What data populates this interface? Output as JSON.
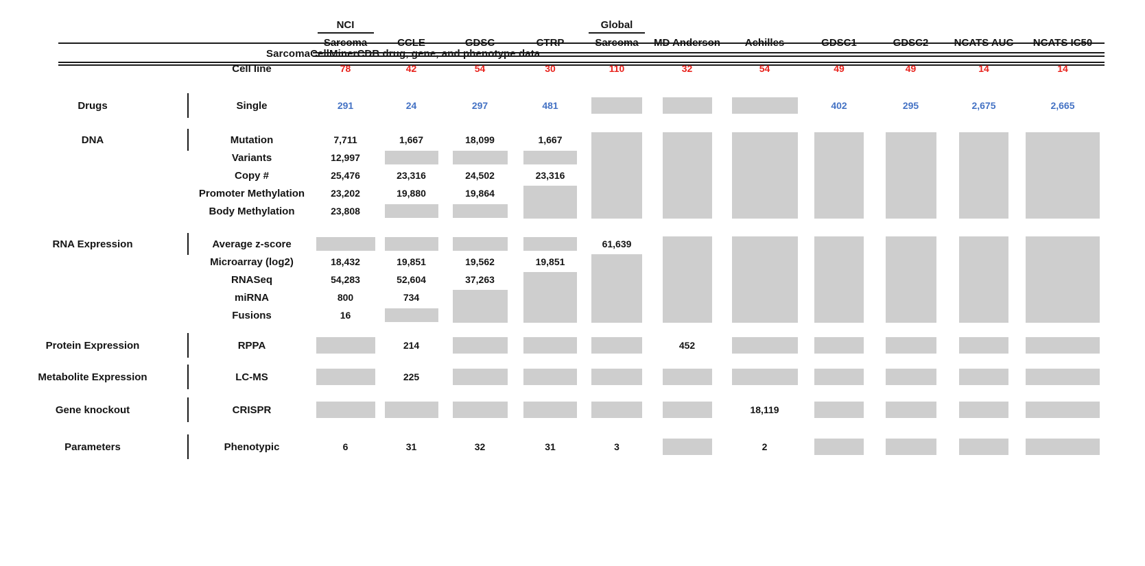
{
  "title": "SarcomaCellMinerCDB drug, gene, and phenotype data",
  "colors": {
    "cell_line_red": "#e8231d",
    "drug_blue": "#4472c4",
    "unavailable_gray": "#cecece",
    "rule_black": "#1a1a1a"
  },
  "columns": [
    {
      "top": "NCI",
      "label": "Sarcoma"
    },
    {
      "top": "",
      "label": "CCLE"
    },
    {
      "top": "",
      "label": "GDSC"
    },
    {
      "top": "",
      "label": "CTRP"
    },
    {
      "top": "Global",
      "label": "Sarcoma"
    },
    {
      "top": "",
      "label": "MD Anderson"
    },
    {
      "top": "",
      "label": "Achilles"
    },
    {
      "top": "",
      "label": "GDSC1"
    },
    {
      "top": "",
      "label": "GDSC2"
    },
    {
      "top": "",
      "label": "NCATS AUC"
    },
    {
      "top": "",
      "label": "NCATS IC50"
    }
  ],
  "sections": [
    {
      "category": "",
      "bar": false,
      "rows": [
        {
          "label": "Cell line",
          "style": "red",
          "cells": [
            "78",
            "42",
            "54",
            "30",
            "110",
            "32",
            "54",
            "49",
            "49",
            "14",
            "14"
          ]
        }
      ]
    },
    {
      "category": "Drugs",
      "bar": true,
      "rows": [
        {
          "label": "Single",
          "style": "blue",
          "cells": [
            "291",
            "24",
            "297",
            "481",
            {
              "g": 1
            },
            {
              "g": 1
            },
            {
              "g": 1
            },
            "402",
            "295",
            "2,675",
            "2,665"
          ]
        }
      ]
    },
    {
      "category": "DNA",
      "bar": true,
      "rows": [
        {
          "label": "Mutation",
          "cells": [
            "7,711",
            "1,667",
            "18,099",
            "1,667",
            {
              "g": 5
            },
            {
              "g": 5
            },
            {
              "g": 5
            },
            {
              "g": 5
            },
            {
              "g": 5
            },
            {
              "g": 5
            },
            {
              "g": 5
            }
          ]
        },
        {
          "label": "Variants",
          "cells": [
            "12,997",
            {
              "g": 1
            },
            {
              "g": 1
            },
            {
              "g": 1
            },
            null,
            null,
            null,
            null,
            null,
            null,
            null
          ]
        },
        {
          "label": "Copy #",
          "cells": [
            "25,476",
            "23,316",
            "24,502",
            "23,316",
            null,
            null,
            null,
            null,
            null,
            null,
            null
          ]
        },
        {
          "label": "Promoter Methylation",
          "cells": [
            "23,202",
            "19,880",
            "19,864",
            {
              "g": 2
            },
            null,
            null,
            null,
            null,
            null,
            null,
            null
          ]
        },
        {
          "label": "Body Methylation",
          "cells": [
            "23,808",
            {
              "g": 1
            },
            {
              "g": 1
            },
            null,
            null,
            null,
            null,
            null,
            null,
            null,
            null
          ]
        }
      ]
    },
    {
      "category": "RNA Expression",
      "bar": true,
      "rows": [
        {
          "label": "Average z-score",
          "cells": [
            {
              "g": 1
            },
            {
              "g": 1
            },
            {
              "g": 1
            },
            {
              "g": 1
            },
            "61,639",
            {
              "g": 5
            },
            {
              "g": 5
            },
            {
              "g": 5
            },
            {
              "g": 5
            },
            {
              "g": 5
            },
            {
              "g": 5
            }
          ]
        },
        {
          "label": "Microarray (log2)",
          "cells": [
            "18,432",
            "19,851",
            "19,562",
            "19,851",
            {
              "g": 4
            },
            null,
            null,
            null,
            null,
            null,
            null
          ]
        },
        {
          "label": "RNASeq",
          "cells": [
            "54,283",
            "52,604",
            "37,263",
            {
              "g": 3
            },
            null,
            null,
            null,
            null,
            null,
            null,
            null
          ]
        },
        {
          "label": "miRNA",
          "cells": [
            "800",
            "734",
            {
              "g": 2
            },
            null,
            null,
            null,
            null,
            null,
            null,
            null,
            null
          ]
        },
        {
          "label": "Fusions",
          "cells": [
            "16",
            {
              "g": 1
            },
            null,
            null,
            null,
            null,
            null,
            null,
            null,
            null,
            null
          ]
        }
      ]
    },
    {
      "category": "Protein Expression",
      "bar": true,
      "rows": [
        {
          "label": "RPPA",
          "cells": [
            {
              "g": 1
            },
            "214",
            {
              "g": 1
            },
            {
              "g": 1
            },
            {
              "g": 1
            },
            "452",
            {
              "g": 1
            },
            {
              "g": 1
            },
            {
              "g": 1
            },
            {
              "g": 1
            },
            {
              "g": 1
            }
          ]
        }
      ]
    },
    {
      "category": "Metabolite Expression",
      "bar": true,
      "rows": [
        {
          "label": "LC-MS",
          "cells": [
            {
              "g": 1
            },
            "225",
            {
              "g": 1
            },
            {
              "g": 1
            },
            {
              "g": 1
            },
            {
              "g": 1
            },
            {
              "g": 1
            },
            {
              "g": 1
            },
            {
              "g": 1
            },
            {
              "g": 1
            },
            {
              "g": 1
            }
          ]
        }
      ]
    },
    {
      "category": "Gene knockout",
      "bar": true,
      "rows": [
        {
          "label": "CRISPR",
          "cells": [
            {
              "g": 1
            },
            {
              "g": 1
            },
            {
              "g": 1
            },
            {
              "g": 1
            },
            {
              "g": 1
            },
            {
              "g": 1
            },
            "18,119",
            {
              "g": 1
            },
            {
              "g": 1
            },
            {
              "g": 1
            },
            {
              "g": 1
            }
          ]
        }
      ]
    },
    {
      "category": "Parameters",
      "bar": true,
      "rows": [
        {
          "label": "Phenotypic",
          "cells": [
            "6",
            "31",
            "32",
            "31",
            "3",
            {
              "g": 1
            },
            "2",
            {
              "g": 1
            },
            {
              "g": 1
            },
            {
              "g": 1
            },
            {
              "g": 1
            }
          ]
        }
      ]
    }
  ]
}
